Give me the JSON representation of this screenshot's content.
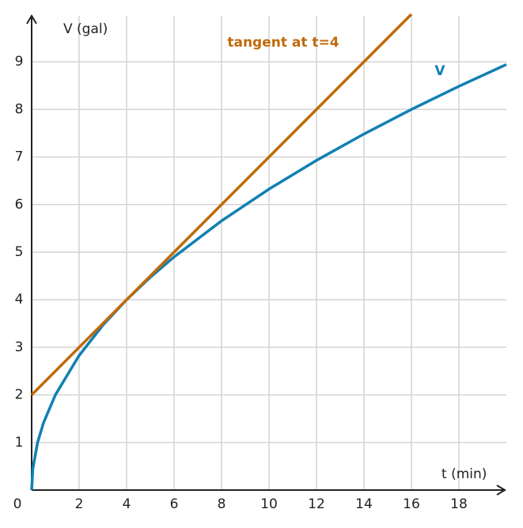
{
  "chart_data": {
    "type": "line",
    "x_label": "t (min)",
    "y_label": "V (gal)",
    "xlim": [
      0,
      20
    ],
    "ylim": [
      0,
      10
    ],
    "xticks": [
      0,
      2,
      4,
      6,
      8,
      10,
      12,
      14,
      16,
      18
    ],
    "yticks": [
      1,
      2,
      3,
      4,
      5,
      6,
      7,
      8,
      9
    ],
    "grid": true,
    "series": [
      {
        "name": "V",
        "color": "#1180b3",
        "x": [
          0,
          0.05,
          0.25,
          0.5,
          1,
          2,
          3,
          4,
          5,
          6,
          8,
          10,
          12,
          14,
          16,
          18,
          20
        ],
        "values": [
          0,
          0.447,
          1,
          1.414,
          2,
          2.828,
          3.464,
          4,
          4.472,
          4.899,
          5.657,
          6.325,
          6.928,
          7.483,
          8,
          8.485,
          8.944
        ]
      },
      {
        "name": "tangent at t=4",
        "color": "#c06a0b",
        "x": [
          0,
          16
        ],
        "values": [
          2,
          10
        ]
      }
    ]
  }
}
